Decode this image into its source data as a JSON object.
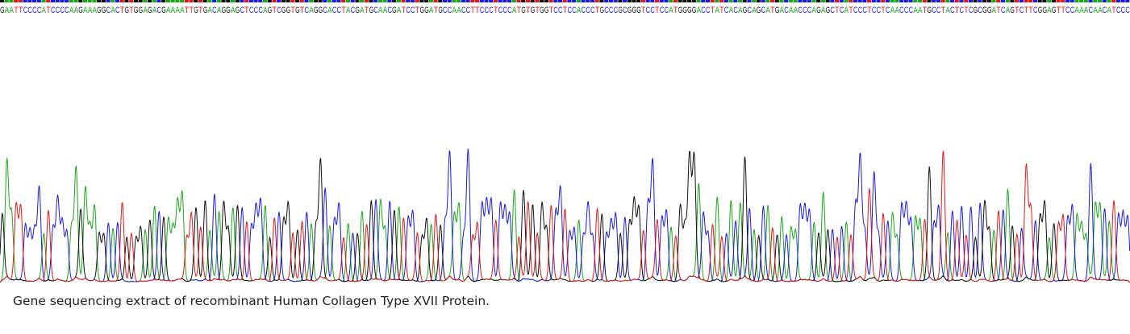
{
  "caption": "Gene sequencing extract of recombinant Human Collagen Type XVII Protein.",
  "chart_data": {
    "type": "line",
    "title": "",
    "xlabel": "",
    "ylabel": "",
    "base_colors": {
      "A": "#1aa81a",
      "C": "#1a1ae6",
      "G": "#111111",
      "T": "#e01818"
    },
    "sequence": "GAATTCCCCATCCCCAAGAAAGGCACTGTGGAGACGAAAATTGTGACAGGAGCTCCCAGTCGGTGTCAGGCACCTACGATGCAACGATCCTGGATGCCAACCTTCCCTCCCATGTGTGGTCCTCCACCCTGCCCGCGGGTCCTCCATGGGGACCTATCACAGCAGCATGACAACCCAGAGCTCATCCCTCCTCAACCCAATGCCTACTCTCGCGGATCAGTCTTCGGAGTTCCAAACAACATCCC",
    "peaks_note": "",
    "ylim": [
      0,
      1
    ]
  }
}
